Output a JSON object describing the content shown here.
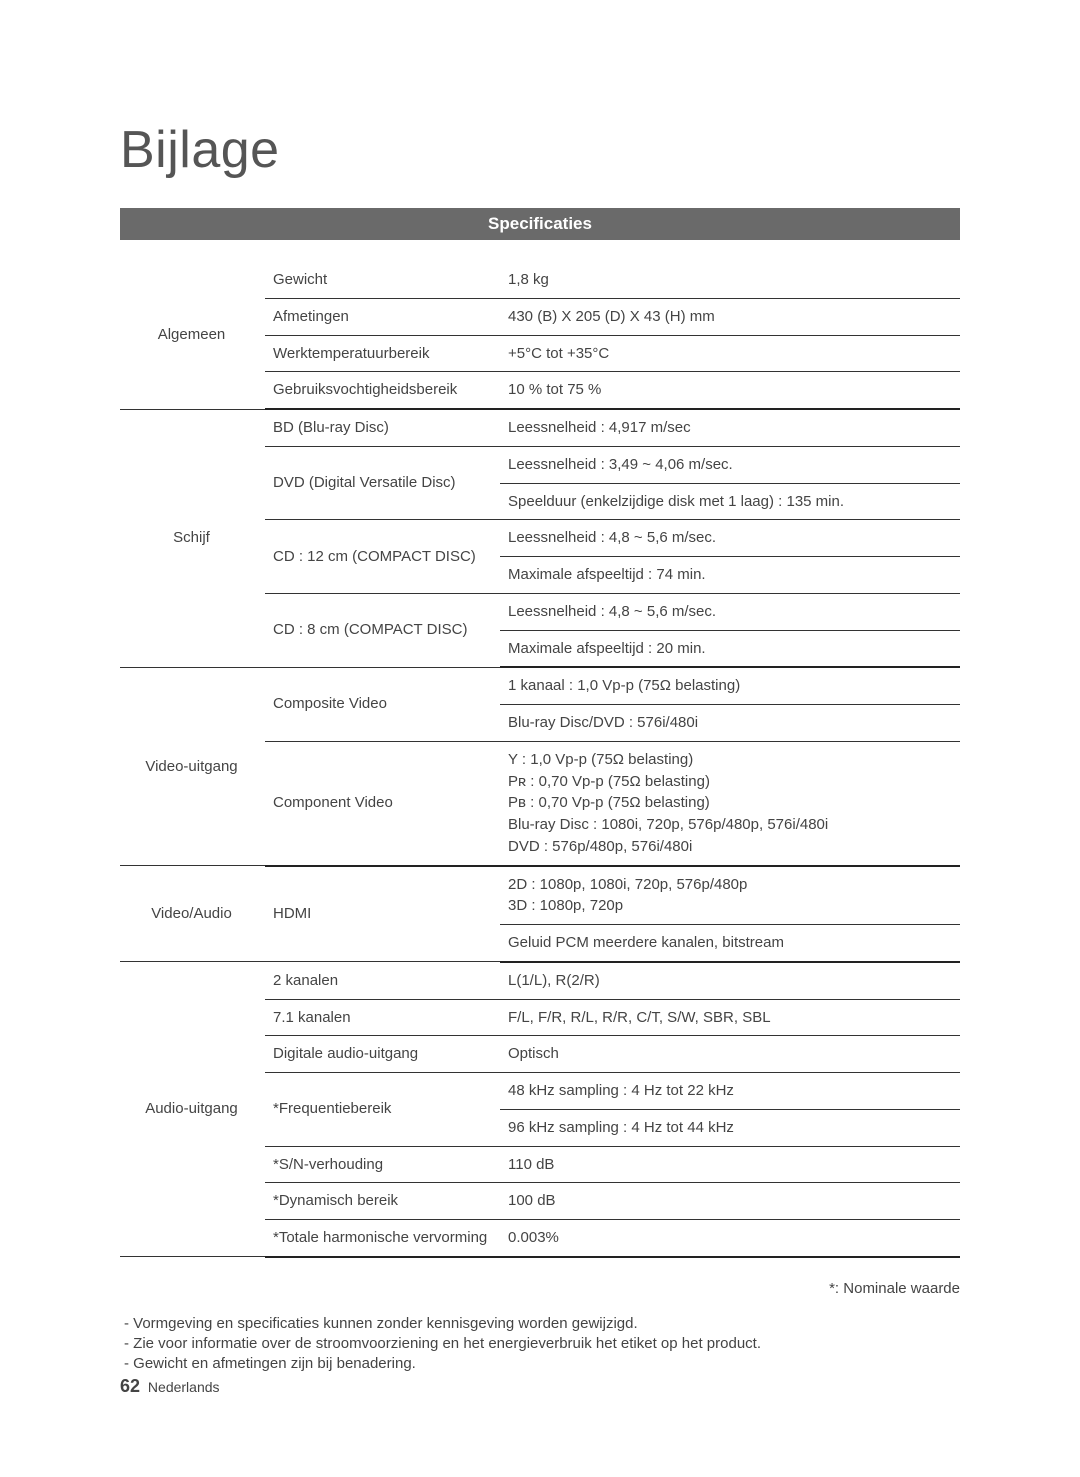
{
  "page": {
    "title": "Bijlage",
    "section_header": "Specificaties",
    "footnote_right": "*: Nominale waarde",
    "notes": [
      "-  Vormgeving en specificaties kunnen zonder kennisgeving worden gewijzigd.",
      "-  Zie voor informatie over de stroomvoorziening en het energieverbruik het etiket op het product.",
      "-  Gewicht en afmetingen zijn bij benadering."
    ],
    "footer_number": "62",
    "footer_lang": "Nederlands"
  },
  "spec_groups": [
    {
      "category": "Algemeen",
      "rows": [
        {
          "sub": "Gewicht",
          "vals": [
            "1,8 kg"
          ]
        },
        {
          "sub": "Afmetingen",
          "vals": [
            "430 (B) X 205 (D) X 43 (H) mm"
          ]
        },
        {
          "sub": "Werktemperatuurbereik",
          "vals": [
            "+5°C tot +35°C"
          ]
        },
        {
          "sub": "Gebruiksvochtigheidsbereik",
          "vals": [
            "10 % tot 75 %"
          ]
        }
      ]
    },
    {
      "category": "Schijf",
      "rows": [
        {
          "sub": "BD (Blu-ray Disc)",
          "vals": [
            "Leessnelheid : 4,917 m/sec"
          ]
        },
        {
          "sub": "DVD (Digital Versatile Disc)",
          "vals": [
            "Leessnelheid : 3,49 ~ 4,06 m/sec.",
            "Speelduur (enkelzijdige disk met 1 laag) : 135 min."
          ]
        },
        {
          "sub": "CD : 12 cm (COMPACT DISC)",
          "vals": [
            "Leessnelheid : 4,8 ~ 5,6 m/sec.",
            "Maximale afspeeltijd : 74 min."
          ]
        },
        {
          "sub": "CD : 8 cm (COMPACT DISC)",
          "vals": [
            "Leessnelheid : 4,8 ~ 5,6 m/sec.",
            "Maximale afspeeltijd : 20 min."
          ]
        }
      ]
    },
    {
      "category": "Video-uitgang",
      "rows": [
        {
          "sub": "Composite Video",
          "vals": [
            "1 kanaal : 1,0 Vp-p (75Ω belasting)",
            "Blu-ray Disc/DVD : 576i/480i"
          ]
        },
        {
          "sub": "Component Video",
          "vals": [
            "Y  : 1,0 Vp-p (75Ω belasting)\nPʀ : 0,70 Vp-p (75Ω belasting)\nPʙ : 0,70 Vp-p (75Ω belasting)\nBlu-ray Disc : 1080i, 720p, 576p/480p, 576i/480i\nDVD : 576p/480p, 576i/480i"
          ]
        }
      ]
    },
    {
      "category": "Video/Audio",
      "rows": [
        {
          "sub": "HDMI",
          "vals": [
            "2D : 1080p, 1080i, 720p, 576p/480p\n3D : 1080p, 720p",
            "Geluid PCM meerdere kanalen, bitstream"
          ]
        }
      ]
    },
    {
      "category": "Audio-uitgang",
      "rows": [
        {
          "sub": "2 kanalen",
          "vals": [
            "L(1/L), R(2/R)"
          ]
        },
        {
          "sub": "7.1 kanalen",
          "vals": [
            "F/L, F/R, R/L, R/R, C/T, S/W, SBR, SBL"
          ]
        },
        {
          "sub": "Digitale audio-uitgang",
          "vals": [
            "Optisch"
          ]
        },
        {
          "sub": "*Frequentiebereik",
          "vals": [
            "48 kHz sampling : 4 Hz tot 22 kHz",
            "96 kHz sampling : 4 Hz tot 44 kHz"
          ]
        },
        {
          "sub": "*S/N-verhouding",
          "vals": [
            "110 dB"
          ]
        },
        {
          "sub": "*Dynamisch bereik",
          "vals": [
            "100 dB"
          ]
        },
        {
          "sub": "*Totale harmonische vervorming",
          "vals": [
            "0.003%"
          ]
        }
      ]
    }
  ],
  "style": {
    "header_bg": "#6a6a6a",
    "header_fg": "#ffffff",
    "border_color": "#333333",
    "group_border_color": "#222222",
    "text_color": "#444444"
  }
}
